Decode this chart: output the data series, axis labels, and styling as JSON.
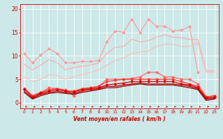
{
  "xlabel": "Vent moyen/en rafales ( km/h )",
  "xlim": [
    -0.5,
    23.5
  ],
  "ylim": [
    -1.2,
    21
  ],
  "yticks": [
    0,
    5,
    10,
    15,
    20
  ],
  "xticks": [
    0,
    1,
    2,
    3,
    4,
    5,
    6,
    7,
    8,
    9,
    10,
    11,
    12,
    13,
    14,
    15,
    16,
    17,
    18,
    19,
    20,
    21,
    22,
    23
  ],
  "bg_color": "#cce8e8",
  "grid_color": "#ffffff",
  "series": [
    {
      "color": "#ff9999",
      "lw": 0.8,
      "marker": "D",
      "ms": 2,
      "data_x": [
        0,
        1,
        2,
        3,
        4,
        5,
        6,
        7,
        8,
        9,
        10,
        11,
        12,
        13,
        14,
        15,
        16,
        17,
        18,
        19,
        20,
        21
      ],
      "data_y": [
        10.5,
        8.5,
        10.2,
        11.5,
        10.5,
        8.5,
        8.5,
        8.8,
        8.8,
        9.0,
        13.0,
        15.3,
        15.0,
        17.8,
        15.0,
        17.8,
        16.3,
        16.3,
        15.3,
        15.5,
        16.2,
        6.5
      ]
    },
    {
      "color": "#ffaaaa",
      "lw": 0.8,
      "marker": null,
      "ms": 0,
      "data_x": [
        0,
        1,
        2,
        3,
        4,
        5,
        6,
        7,
        8,
        9,
        10,
        11,
        12,
        13,
        14,
        15,
        16,
        17,
        18,
        19,
        20,
        21,
        22,
        23
      ],
      "data_y": [
        8.2,
        7.0,
        8.0,
        9.2,
        8.5,
        7.0,
        7.5,
        7.8,
        8.0,
        8.5,
        10.5,
        11.8,
        12.0,
        13.5,
        13.0,
        13.2,
        14.0,
        14.5,
        14.0,
        13.8,
        13.5,
        13.5,
        6.8,
        6.8
      ]
    },
    {
      "color": "#ffbbbb",
      "lw": 0.8,
      "marker": null,
      "ms": 0,
      "data_x": [
        0,
        1,
        2,
        3,
        4,
        5,
        6,
        7,
        8,
        9,
        10,
        11,
        12,
        13,
        14,
        15,
        16,
        17,
        18,
        19,
        20,
        21,
        22,
        23
      ],
      "data_y": [
        5.5,
        4.5,
        5.0,
        6.0,
        5.8,
        5.0,
        5.5,
        6.0,
        6.5,
        7.0,
        8.0,
        9.0,
        9.5,
        10.5,
        10.8,
        11.0,
        12.0,
        12.5,
        12.5,
        12.0,
        12.0,
        12.8,
        6.5,
        6.5
      ]
    },
    {
      "color": "#ff6666",
      "lw": 0.9,
      "marker": "D",
      "ms": 2,
      "data_x": [
        0,
        1,
        2,
        3,
        4,
        5,
        6,
        7,
        8,
        9,
        10,
        11,
        12,
        13,
        14,
        15,
        16,
        17,
        18,
        19,
        20,
        21,
        22,
        23
      ],
      "data_y": [
        3.0,
        1.5,
        2.2,
        3.2,
        3.0,
        2.8,
        1.5,
        3.0,
        3.2,
        3.5,
        5.0,
        5.0,
        5.0,
        5.2,
        5.5,
        6.5,
        6.5,
        5.5,
        5.5,
        5.0,
        5.0,
        4.0,
        1.3,
        1.5
      ]
    },
    {
      "color": "#ff3333",
      "lw": 0.9,
      "marker": "P",
      "ms": 2.5,
      "data_x": [
        0,
        1,
        2,
        3,
        4,
        5,
        6,
        7,
        8,
        9,
        10,
        11,
        12,
        13,
        14,
        15,
        16,
        17,
        18,
        19,
        20,
        21,
        22,
        23
      ],
      "data_y": [
        3.0,
        1.5,
        2.2,
        2.8,
        3.0,
        2.5,
        2.5,
        3.0,
        3.2,
        3.5,
        4.5,
        4.8,
        5.0,
        5.0,
        5.0,
        5.0,
        5.0,
        5.0,
        5.0,
        4.5,
        4.0,
        3.5,
        1.2,
        1.5
      ]
    },
    {
      "color": "#dd0000",
      "lw": 0.9,
      "marker": "D",
      "ms": 2,
      "data_x": [
        0,
        1,
        2,
        3,
        4,
        5,
        6,
        7,
        8,
        9,
        10,
        11,
        12,
        13,
        14,
        15,
        16,
        17,
        18,
        19,
        20,
        21,
        22,
        23
      ],
      "data_y": [
        3.0,
        1.2,
        2.0,
        2.5,
        2.8,
        2.5,
        2.3,
        2.8,
        3.0,
        3.2,
        3.8,
        4.0,
        4.2,
        4.5,
        4.5,
        4.5,
        4.5,
        4.5,
        4.5,
        4.0,
        3.8,
        3.2,
        1.0,
        1.2
      ]
    },
    {
      "color": "#bb0000",
      "lw": 0.9,
      "marker": null,
      "ms": 0,
      "data_x": [
        0,
        1,
        2,
        3,
        4,
        5,
        6,
        7,
        8,
        9,
        10,
        11,
        12,
        13,
        14,
        15,
        16,
        17,
        18,
        19,
        20,
        21,
        22,
        23
      ],
      "data_y": [
        2.5,
        1.0,
        1.8,
        2.2,
        2.5,
        2.2,
        2.0,
        2.5,
        2.8,
        3.0,
        3.5,
        3.5,
        3.8,
        4.0,
        4.2,
        4.0,
        4.0,
        4.0,
        4.0,
        3.8,
        3.5,
        3.0,
        0.8,
        1.0
      ]
    },
    {
      "color": "#990000",
      "lw": 0.9,
      "marker": null,
      "ms": 0,
      "data_x": [
        0,
        1,
        2,
        3,
        4,
        5,
        6,
        7,
        8,
        9,
        10,
        11,
        12,
        13,
        14,
        15,
        16,
        17,
        18,
        19,
        20,
        21,
        22,
        23
      ],
      "data_y": [
        2.2,
        0.8,
        1.5,
        2.0,
        2.2,
        2.0,
        1.8,
        2.2,
        2.5,
        2.8,
        3.2,
        3.2,
        3.5,
        3.8,
        4.0,
        3.8,
        3.8,
        3.8,
        3.8,
        3.5,
        3.2,
        2.8,
        0.5,
        0.8
      ]
    }
  ],
  "arrow_color": "#cc0000"
}
